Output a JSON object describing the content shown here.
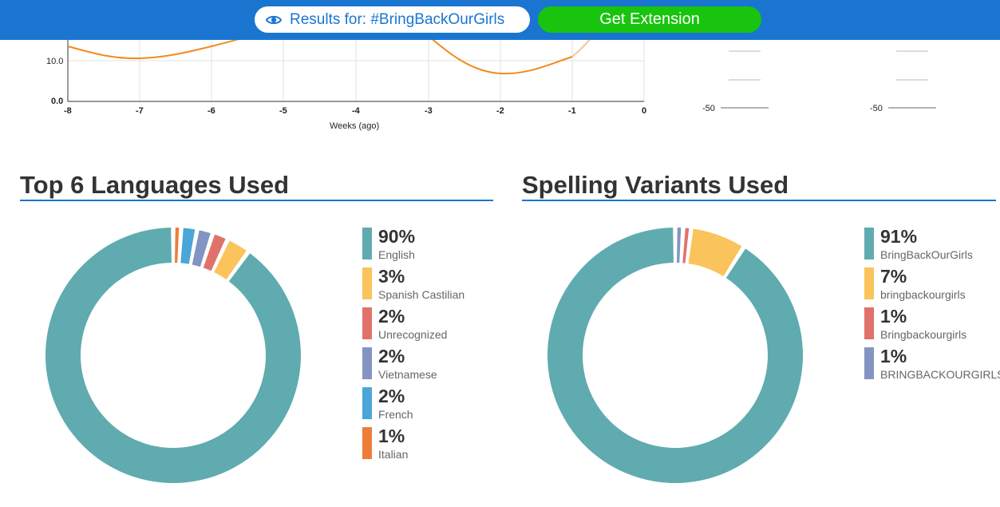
{
  "header": {
    "results_label": "Results for: #BringBackOurGirls",
    "extension_button": "Get Extension",
    "icon": "eye-icon"
  },
  "line_chart": {
    "y_ticks": [
      "10.0",
      "0.0"
    ],
    "x_ticks": [
      "-8",
      "-7",
      "-6",
      "-5",
      "-4",
      "-3",
      "-2",
      "-1",
      "0"
    ],
    "xlabel": "Weeks (ago)",
    "right_panel_ticks": [
      "-50",
      "-50"
    ]
  },
  "languages": {
    "title": "Top 6 Languages Used",
    "items": [
      {
        "pct": "90%",
        "label": "English",
        "color": "#5fabb0"
      },
      {
        "pct": "3%",
        "label": "Spanish Castilian",
        "color": "#fbc35b"
      },
      {
        "pct": "2%",
        "label": "Unrecognized",
        "color": "#e0716b"
      },
      {
        "pct": "2%",
        "label": "Vietnamese",
        "color": "#8494c2"
      },
      {
        "pct": "2%",
        "label": "French",
        "color": "#4aa6d6"
      },
      {
        "pct": "1%",
        "label": "Italian",
        "color": "#ee7d3a"
      }
    ]
  },
  "spelling": {
    "title": "Spelling Variants Used",
    "items": [
      {
        "pct": "91%",
        "label": "BringBackOurGirls",
        "color": "#5fabb0"
      },
      {
        "pct": "7%",
        "label": "bringbackourgirls",
        "color": "#fbc35b"
      },
      {
        "pct": "1%",
        "label": "Bringbackourgirls",
        "color": "#e0716b"
      },
      {
        "pct": "1%",
        "label": "BRINGBACKOURGIRLS",
        "color": "#8494c2"
      }
    ]
  },
  "chart_data": [
    {
      "type": "pie",
      "title": "Top 6 Languages Used",
      "categories": [
        "English",
        "Spanish Castilian",
        "Unrecognized",
        "Vietnamese",
        "French",
        "Italian"
      ],
      "values": [
        90,
        3,
        2,
        2,
        2,
        1
      ]
    },
    {
      "type": "pie",
      "title": "Spelling Variants Used",
      "categories": [
        "BringBackOurGirls",
        "bringbackourgirls",
        "Bringbackourgirls",
        "BRINGBACKOURGIRLS"
      ],
      "values": [
        91,
        7,
        1,
        1
      ]
    }
  ]
}
